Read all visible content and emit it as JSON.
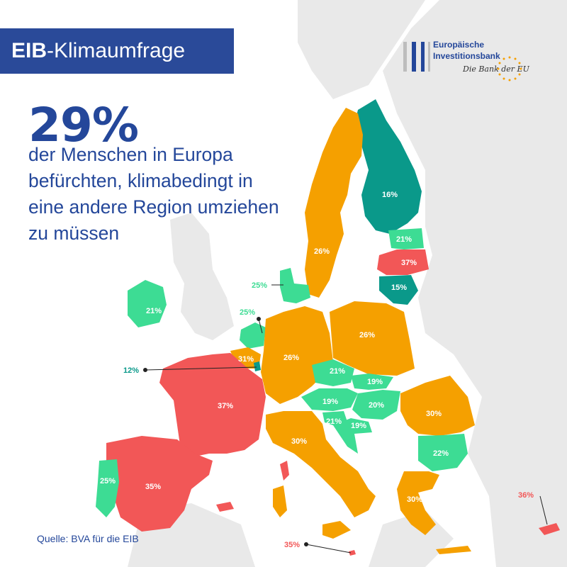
{
  "header": {
    "title_bold": "EIB",
    "title_rest": "-Klimaumfrage",
    "headline_value": "29%",
    "headline_text": "der Menschen in Europa befürchten, klimabedingt in eine andere Region umziehen zu müssen"
  },
  "logo": {
    "line1": "Europäische",
    "line2": "Investitionsbank",
    "tagline": "Die Bank der EU"
  },
  "source": "Quelle: BVA für die EIB",
  "colors": {
    "title_bg": "#2a4a99",
    "text_blue": "#24479a",
    "orange": "#f5a000",
    "red": "#f25757",
    "green": "#3ddc94",
    "teal": "#0a998a",
    "background_land": "#e9e9e9"
  },
  "map_data": {
    "type": "choropleth",
    "unit": "%",
    "countries": [
      {
        "id": "finland",
        "label": "16%",
        "value": 16,
        "color": "teal"
      },
      {
        "id": "sweden",
        "label": "26%",
        "value": 26,
        "color": "orange"
      },
      {
        "id": "estonia",
        "label": "21%",
        "value": 21,
        "color": "green"
      },
      {
        "id": "latvia",
        "label": "37%",
        "value": 37,
        "color": "red"
      },
      {
        "id": "lithuania",
        "label": "15%",
        "value": 15,
        "color": "teal"
      },
      {
        "id": "denmark",
        "label": "25%",
        "value": 25,
        "color": "green"
      },
      {
        "id": "ireland",
        "label": "21%",
        "value": 21,
        "color": "green"
      },
      {
        "id": "netherlands",
        "label": "25%",
        "value": 25,
        "color": "green"
      },
      {
        "id": "belgium",
        "label": "31%",
        "value": 31,
        "color": "orange"
      },
      {
        "id": "luxembourg",
        "label": "12%",
        "value": 12,
        "color": "teal"
      },
      {
        "id": "germany",
        "label": "26%",
        "value": 26,
        "color": "orange"
      },
      {
        "id": "poland",
        "label": "26%",
        "value": 26,
        "color": "orange"
      },
      {
        "id": "czechia",
        "label": "21%",
        "value": 21,
        "color": "green"
      },
      {
        "id": "slovakia",
        "label": "19%",
        "value": 19,
        "color": "green"
      },
      {
        "id": "austria",
        "label": "19%",
        "value": 19,
        "color": "green"
      },
      {
        "id": "hungary",
        "label": "20%",
        "value": 20,
        "color": "green"
      },
      {
        "id": "slovenia",
        "label": "21%",
        "value": 21,
        "color": "green"
      },
      {
        "id": "croatia",
        "label": "19%",
        "value": 19,
        "color": "green"
      },
      {
        "id": "france",
        "label": "37%",
        "value": 37,
        "color": "red"
      },
      {
        "id": "romania",
        "label": "30%",
        "value": 30,
        "color": "orange"
      },
      {
        "id": "bulgaria",
        "label": "22%",
        "value": 22,
        "color": "green"
      },
      {
        "id": "italy",
        "label": "30%",
        "value": 30,
        "color": "orange"
      },
      {
        "id": "spain",
        "label": "35%",
        "value": 35,
        "color": "red"
      },
      {
        "id": "portugal",
        "label": "25%",
        "value": 25,
        "color": "green"
      },
      {
        "id": "greece",
        "label": "30%",
        "value": 30,
        "color": "orange"
      },
      {
        "id": "cyprus",
        "label": "36%",
        "value": 36,
        "color": "red"
      },
      {
        "id": "malta",
        "label": "35%",
        "value": 35,
        "color": "red"
      }
    ]
  }
}
